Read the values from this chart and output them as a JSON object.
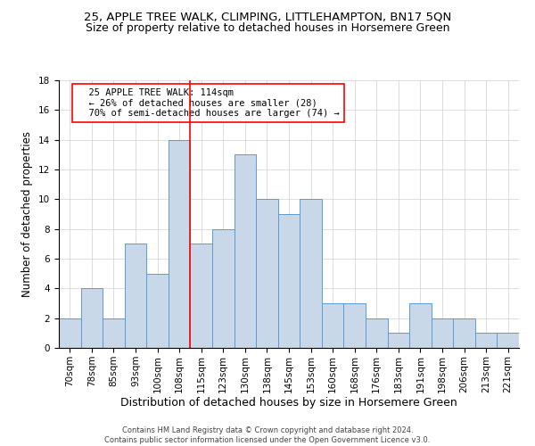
{
  "title1": "25, APPLE TREE WALK, CLIMPING, LITTLEHAMPTON, BN17 5QN",
  "title2": "Size of property relative to detached houses in Horsemere Green",
  "xlabel": "Distribution of detached houses by size in Horsemere Green",
  "ylabel": "Number of detached properties",
  "footnote": "Contains HM Land Registry data © Crown copyright and database right 2024.\nContains public sector information licensed under the Open Government Licence v3.0.",
  "categories": [
    "70sqm",
    "78sqm",
    "85sqm",
    "93sqm",
    "100sqm",
    "108sqm",
    "115sqm",
    "123sqm",
    "130sqm",
    "138sqm",
    "145sqm",
    "153sqm",
    "160sqm",
    "168sqm",
    "176sqm",
    "183sqm",
    "191sqm",
    "198sqm",
    "206sqm",
    "213sqm",
    "221sqm"
  ],
  "values": [
    2,
    4,
    2,
    7,
    5,
    14,
    7,
    8,
    13,
    10,
    9,
    10,
    3,
    3,
    2,
    1,
    3,
    2,
    2,
    1,
    1
  ],
  "bar_color": "#c8d8e8",
  "bar_edge_color": "#5b9bd5",
  "vline_x": 5.5,
  "vline_color": "red",
  "annotation_text": "  25 APPLE TREE WALK: 114sqm\n  ← 26% of detached houses are smaller (28)\n  70% of semi-detached houses are larger (74) →",
  "annotation_box_color": "white",
  "annotation_box_edge": "red",
  "ylim": [
    0,
    18
  ],
  "yticks": [
    0,
    2,
    4,
    6,
    8,
    10,
    12,
    14,
    16,
    18
  ],
  "bg_color": "white",
  "grid_color": "#d0d0d0",
  "title1_fontsize": 9.5,
  "title2_fontsize": 9,
  "xlabel_fontsize": 9,
  "ylabel_fontsize": 8.5,
  "tick_fontsize": 7.5,
  "annot_fontsize": 7.5
}
